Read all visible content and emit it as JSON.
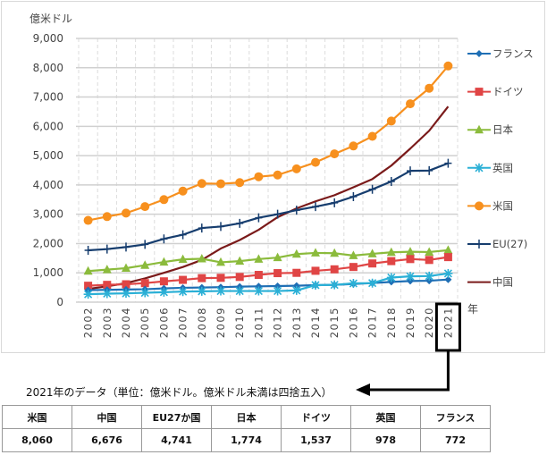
{
  "chart_data": {
    "type": "line",
    "title": "",
    "ylabel": "億米ドル",
    "xlabel": "年",
    "ylim": [
      0,
      9000
    ],
    "yticks": [
      "0",
      "1,000",
      "2,000",
      "3,000",
      "4,000",
      "5,000",
      "6,000",
      "7,000",
      "8,000",
      "9,000"
    ],
    "ytick_values": [
      0,
      1000,
      2000,
      3000,
      4000,
      5000,
      6000,
      7000,
      8000,
      9000
    ],
    "x": [
      "2002",
      "2003",
      "2004",
      "2005",
      "2006",
      "2007",
      "2008",
      "2009",
      "2010",
      "2011",
      "2012",
      "2013",
      "2014",
      "2015",
      "2016",
      "2017",
      "2018",
      "2019",
      "2020",
      "2021"
    ],
    "grid": "horizontal solid, vertical dashed",
    "legend_position": "right",
    "highlighted_category": "2021",
    "series": [
      {
        "name": "フランス",
        "color": "#1f6fb5",
        "marker": "diamond",
        "values": [
          410,
          420,
          430,
          440,
          470,
          490,
          500,
          510,
          530,
          540,
          550,
          560,
          580,
          590,
          620,
          650,
          690,
          720,
          730,
          772
        ]
      },
      {
        "name": "ドイツ",
        "color": "#e04545",
        "marker": "square",
        "values": [
          560,
          590,
          610,
          650,
          710,
          760,
          820,
          830,
          860,
          930,
          990,
          1000,
          1070,
          1120,
          1200,
          1320,
          1400,
          1470,
          1440,
          1537
        ]
      },
      {
        "name": "日本",
        "color": "#8bbb3c",
        "marker": "triangle",
        "values": [
          1060,
          1110,
          1160,
          1260,
          1370,
          1460,
          1480,
          1360,
          1400,
          1470,
          1520,
          1640,
          1680,
          1670,
          1590,
          1650,
          1700,
          1720,
          1710,
          1774
        ]
      },
      {
        "name": "英国",
        "color": "#2bb0d6",
        "marker": "asterisk",
        "values": [
          270,
          290,
          300,
          320,
          340,
          360,
          370,
          380,
          380,
          380,
          380,
          400,
          580,
          590,
          640,
          650,
          840,
          880,
          890,
          978
        ]
      },
      {
        "name": "米国",
        "color": "#f7901e",
        "marker": "circle",
        "values": [
          2790,
          2920,
          3040,
          3260,
          3500,
          3790,
          4050,
          4040,
          4080,
          4280,
          4340,
          4550,
          4770,
          5060,
          5330,
          5660,
          6180,
          6770,
          7300,
          8060
        ]
      },
      {
        "name": "EU(27)",
        "color": "#163d6e",
        "marker": "plus",
        "values": [
          1770,
          1810,
          1880,
          1970,
          2160,
          2300,
          2530,
          2580,
          2690,
          2880,
          3000,
          3140,
          3260,
          3390,
          3600,
          3850,
          4120,
          4480,
          4490,
          4741
        ]
      },
      {
        "name": "中国",
        "color": "#7a1a1a",
        "marker": "none",
        "values": [
          450,
          540,
          650,
          810,
          1000,
          1200,
          1440,
          1830,
          2120,
          2470,
          2900,
          3200,
          3440,
          3650,
          3920,
          4200,
          4660,
          5240,
          5850,
          6676
        ]
      }
    ]
  },
  "caption": "2021年のデータ（単位：億米ドル。億米ドル未満は四捨五入）",
  "table": {
    "headers": [
      "米国",
      "中国",
      "EU27か国",
      "日本",
      "ドイツ",
      "英国",
      "フランス"
    ],
    "values": [
      "8,060",
      "6,676",
      "4,741",
      "1,774",
      "1,537",
      "978",
      "772"
    ]
  }
}
